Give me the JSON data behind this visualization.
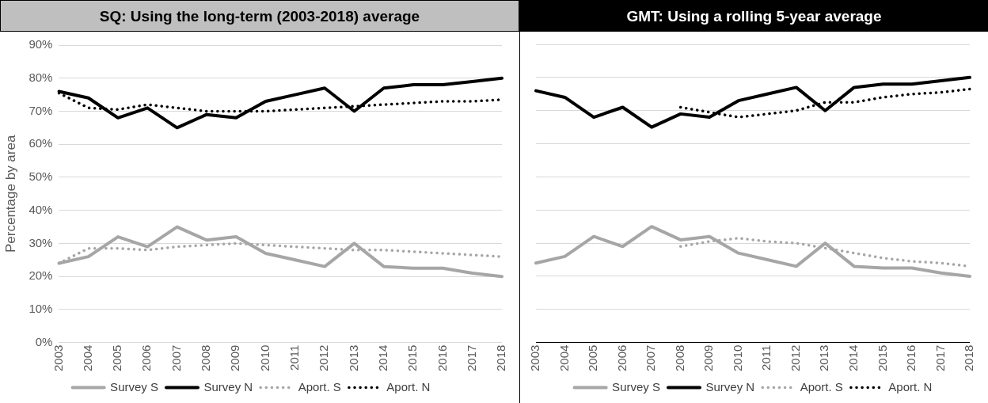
{
  "chart_data": [
    {
      "type": "line",
      "title": "SQ:  Using the long-term (2003-2018) average",
      "ylabel": "Percentage by area",
      "categories": [
        "2003",
        "2004",
        "2005",
        "2006",
        "2007",
        "2008",
        "2009",
        "2010",
        "2011",
        "2012",
        "2013",
        "2014",
        "2015",
        "2016",
        "2017",
        "2018"
      ],
      "series": [
        {
          "name": "Survey S",
          "color": "#a6a6a6",
          "line_style": "solid",
          "values": [
            24,
            26,
            32,
            29,
            35,
            31,
            32,
            27,
            25,
            23,
            30,
            23,
            22.5,
            22.5,
            21,
            20
          ]
        },
        {
          "name": "Survey N",
          "color": "#000000",
          "line_style": "solid",
          "values": [
            76,
            74,
            68,
            71,
            65,
            69,
            68,
            73,
            75,
            77,
            70,
            77,
            78,
            78,
            79,
            80
          ]
        },
        {
          "name": "Aport. S",
          "color": "#a6a6a6",
          "line_style": "dotted",
          "values": [
            24,
            28.5,
            28.5,
            28,
            29,
            29.5,
            30,
            29.5,
            29,
            28.5,
            28,
            28,
            27.5,
            27,
            26.5,
            26
          ]
        },
        {
          "name": "Aport. N",
          "color": "#000000",
          "line_style": "dotted",
          "values": [
            75.5,
            71,
            70.5,
            72,
            71,
            70,
            70,
            70,
            70.5,
            71,
            71.5,
            72,
            72.5,
            73,
            73,
            73.5
          ]
        }
      ],
      "ylim": [
        0,
        90
      ],
      "yticks": [
        {
          "value": 0,
          "label": "0%"
        },
        {
          "value": 10,
          "label": "10%"
        },
        {
          "value": 20,
          "label": "20%"
        },
        {
          "value": 30,
          "label": "30%"
        },
        {
          "value": 40,
          "label": "40%"
        },
        {
          "value": 50,
          "label": "50%"
        },
        {
          "value": 60,
          "label": "60%"
        },
        {
          "value": 70,
          "label": "70%"
        },
        {
          "value": 80,
          "label": "80%"
        },
        {
          "value": 90,
          "label": "90%"
        }
      ],
      "grid": "y",
      "legend": "bottom",
      "marker": "none"
    },
    {
      "type": "line",
      "title": "GMT: Using a rolling 5-year average",
      "categories": [
        "2003",
        "2004",
        "2005",
        "2006",
        "2007",
        "2008",
        "2009",
        "2010",
        "2011",
        "2012",
        "2013",
        "2014",
        "2015",
        "2016",
        "2017",
        "2018"
      ],
      "series": [
        {
          "name": "Survey S",
          "color": "#a6a6a6",
          "line_style": "solid",
          "values": [
            24,
            26,
            32,
            29,
            35,
            31,
            32,
            27,
            25,
            23,
            30,
            23,
            22.5,
            22.5,
            21,
            20
          ]
        },
        {
          "name": "Survey N",
          "color": "#000000",
          "line_style": "solid",
          "values": [
            76,
            74,
            68,
            71,
            65,
            69,
            68,
            73,
            75,
            77,
            70,
            77,
            78,
            78,
            79,
            80
          ]
        },
        {
          "name": "Aport. S",
          "color": "#a6a6a6",
          "line_style": "dotted",
          "values": [
            null,
            null,
            null,
            null,
            null,
            29,
            30.5,
            31.5,
            30.5,
            30,
            28.5,
            27,
            25.5,
            24.5,
            24,
            23
          ]
        },
        {
          "name": "Aport. N",
          "color": "#000000",
          "line_style": "dotted",
          "values": [
            null,
            null,
            null,
            null,
            null,
            71,
            69.5,
            68,
            69,
            70,
            72.5,
            72.5,
            74,
            75,
            75.5,
            76.5
          ]
        }
      ],
      "ylim": [
        0,
        90
      ],
      "yticks": [
        {
          "value": 0,
          "label": null
        },
        {
          "value": 10,
          "label": null
        },
        {
          "value": 20,
          "label": null
        },
        {
          "value": 30,
          "label": null
        },
        {
          "value": 40,
          "label": null
        },
        {
          "value": 50,
          "label": null
        },
        {
          "value": 60,
          "label": null
        },
        {
          "value": 70,
          "label": null
        },
        {
          "value": 80,
          "label": null
        },
        {
          "value": 90,
          "label": null
        }
      ],
      "tick_labels": "x",
      "grid": "y",
      "legend": "bottom",
      "marker": "none"
    }
  ]
}
